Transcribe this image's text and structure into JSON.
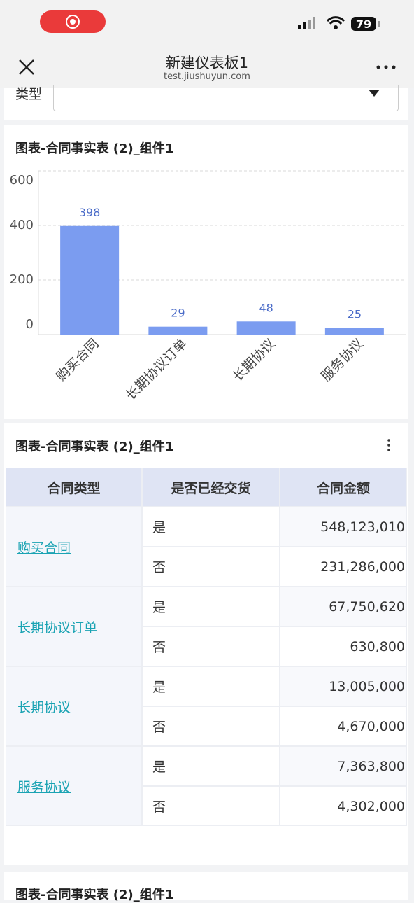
{
  "status_bar": {
    "battery": "79"
  },
  "header": {
    "title": "新建仪表板1",
    "url": "test.jiushuyun.com"
  },
  "filter": {
    "label": "类型"
  },
  "chart_panel": {
    "title": "图表-合同事实表 (2)_组件1",
    "chart_data": {
      "type": "bar",
      "categories": [
        "购买合同",
        "长期协议订单",
        "长期协议",
        "服务协议"
      ],
      "values": [
        398,
        29,
        48,
        25
      ],
      "color": "#7b9cf0",
      "label_color": "#4a6bc8",
      "ylim": [
        0,
        600
      ],
      "yticks": [
        0,
        200,
        400,
        600
      ],
      "grid": true
    }
  },
  "table_panel": {
    "title": "图表-合同事实表 (2)_组件1",
    "table": {
      "headers": [
        "合同类型",
        "是否已经交货",
        "合同金额"
      ],
      "groups": [
        {
          "type": "购买合同",
          "rows": [
            [
              "是",
              "548,123,010"
            ],
            [
              "否",
              "231,286,000"
            ]
          ]
        },
        {
          "type": "长期协议订单",
          "rows": [
            [
              "是",
              "67,750,620"
            ],
            [
              "否",
              "630,800"
            ]
          ]
        },
        {
          "type": "长期协议",
          "rows": [
            [
              "是",
              "13,005,000"
            ],
            [
              "否",
              "4,670,000"
            ]
          ]
        },
        {
          "type": "服务协议",
          "rows": [
            [
              "是",
              "7,363,800"
            ],
            [
              "否",
              "4,302,000"
            ]
          ]
        }
      ]
    }
  },
  "next_panel": {
    "title": "图表-合同事实表 (2)_组件1"
  }
}
